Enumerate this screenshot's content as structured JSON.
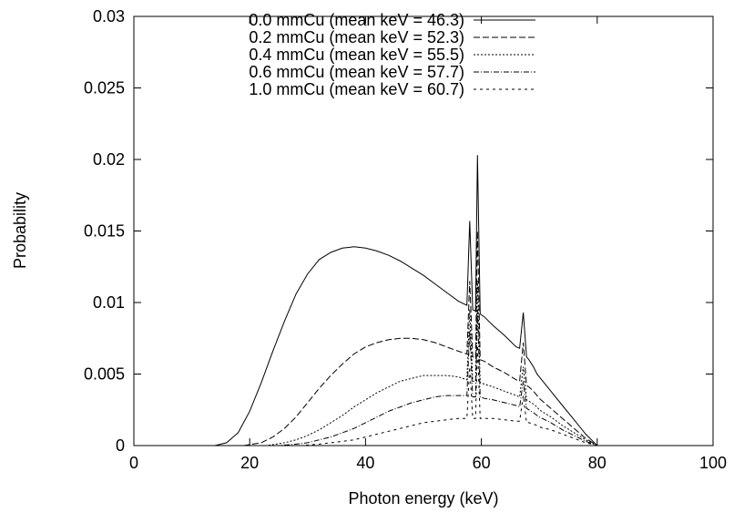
{
  "chart_data": {
    "type": "line",
    "title": "",
    "xlabel": "Photon energy (keV)",
    "ylabel": "Probability",
    "xlim": [
      0,
      100
    ],
    "ylim": [
      0,
      0.03
    ],
    "x_ticks": [
      "0",
      "20",
      "40",
      "60",
      "80",
      "100"
    ],
    "y_ticks": [
      "0",
      "0.005",
      "0.01",
      "0.015",
      "0.02",
      "0.025",
      "0.03"
    ],
    "grid": false,
    "legend_position": "top-right",
    "series": [
      {
        "name": "0.0 mmCu (mean keV = 46.3)",
        "dash": "",
        "x": [
          0,
          14,
          16,
          18,
          20,
          22,
          24,
          26,
          28,
          30,
          32,
          34,
          36,
          38,
          40,
          42,
          44,
          46,
          48,
          50,
          52,
          54,
          56,
          57.5,
          57.98,
          58.5,
          59.0,
          59.32,
          59.8,
          60.5,
          62,
          64,
          66,
          66.6,
          67.24,
          67.8,
          68.2,
          69.0,
          69.6,
          70,
          72,
          74,
          76,
          78,
          80,
          100
        ],
        "y": [
          0,
          0,
          0.0002,
          0.0009,
          0.0024,
          0.0044,
          0.0066,
          0.0087,
          0.0106,
          0.012,
          0.013,
          0.0135,
          0.0138,
          0.0139,
          0.0138,
          0.0136,
          0.0133,
          0.0129,
          0.0124,
          0.0119,
          0.0113,
          0.0107,
          0.0101,
          0.0098,
          0.0157,
          0.0095,
          0.0094,
          0.0203,
          0.0092,
          0.009,
          0.0084,
          0.0077,
          0.0069,
          0.0068,
          0.0093,
          0.0062,
          0.006,
          0.0055,
          0.005,
          0.0048,
          0.0038,
          0.0028,
          0.0018,
          0.0008,
          0,
          0
        ]
      },
      {
        "name": "0.2 mmCu (mean keV = 52.3)",
        "dash": "7,3",
        "x": [
          0,
          19,
          22,
          24,
          26,
          28,
          30,
          32,
          34,
          36,
          38,
          40,
          42,
          44,
          46,
          48,
          50,
          52,
          54,
          56,
          57.5,
          57.98,
          58.5,
          59.0,
          59.32,
          59.8,
          60.5,
          62,
          64,
          66,
          66.6,
          67.24,
          67.8,
          68.2,
          69.0,
          69.6,
          70,
          72,
          74,
          76,
          78,
          80,
          100
        ],
        "y": [
          0,
          0,
          0.0002,
          0.0006,
          0.0012,
          0.002,
          0.003,
          0.004,
          0.0049,
          0.0057,
          0.0064,
          0.0069,
          0.0072,
          0.0074,
          0.0075,
          0.0075,
          0.0074,
          0.0072,
          0.0069,
          0.0066,
          0.0064,
          0.0115,
          0.0062,
          0.0061,
          0.015,
          0.006,
          0.0059,
          0.0055,
          0.0051,
          0.0046,
          0.0045,
          0.0072,
          0.0042,
          0.0041,
          0.0038,
          0.0035,
          0.0033,
          0.0026,
          0.0019,
          0.0012,
          0.0005,
          0,
          0
        ]
      },
      {
        "name": "0.4 mmCu (mean keV = 55.5)",
        "dash": "2,2",
        "x": [
          0,
          23,
          26,
          28,
          30,
          32,
          34,
          36,
          38,
          40,
          42,
          44,
          46,
          48,
          50,
          52,
          54,
          56,
          57.5,
          57.98,
          58.5,
          59.0,
          59.32,
          59.8,
          60.5,
          62,
          64,
          66,
          66.6,
          67.24,
          67.8,
          68.2,
          69.0,
          69.6,
          70,
          72,
          74,
          76,
          78,
          80,
          100
        ],
        "y": [
          0,
          0,
          0.0002,
          0.0004,
          0.0007,
          0.0011,
          0.0016,
          0.0021,
          0.0027,
          0.0032,
          0.0037,
          0.0041,
          0.0045,
          0.0047,
          0.0049,
          0.0049,
          0.0049,
          0.0048,
          0.0046,
          0.0095,
          0.0045,
          0.0045,
          0.0115,
          0.0044,
          0.0043,
          0.0041,
          0.0038,
          0.0035,
          0.0034,
          0.0055,
          0.0032,
          0.0031,
          0.0029,
          0.0027,
          0.0025,
          0.002,
          0.0014,
          0.0009,
          0.0004,
          0,
          0
        ]
      },
      {
        "name": "0.6 mmCu (mean keV = 57.7)",
        "dash": "6,2,1,2",
        "x": [
          0,
          25,
          28,
          30,
          32,
          34,
          36,
          38,
          40,
          42,
          44,
          46,
          48,
          50,
          52,
          54,
          56,
          57.5,
          57.98,
          58.5,
          59.0,
          59.32,
          59.8,
          60.5,
          62,
          64,
          66,
          66.6,
          67.24,
          67.8,
          68.2,
          69.0,
          69.6,
          70,
          72,
          74,
          76,
          78,
          80,
          100
        ],
        "y": [
          0,
          0,
          0.0001,
          0.0002,
          0.0004,
          0.0006,
          0.0009,
          0.0012,
          0.0016,
          0.002,
          0.0024,
          0.0027,
          0.003,
          0.0032,
          0.0034,
          0.0035,
          0.0035,
          0.0035,
          0.008,
          0.0034,
          0.0034,
          0.0095,
          0.0034,
          0.0033,
          0.0032,
          0.003,
          0.0028,
          0.0027,
          0.0045,
          0.0026,
          0.0025,
          0.0023,
          0.0021,
          0.002,
          0.0016,
          0.0011,
          0.0007,
          0.0003,
          0,
          0
        ]
      },
      {
        "name": "1.0 mmCu (mean keV = 60.7)",
        "dash": "3,4",
        "x": [
          0,
          29,
          32,
          34,
          36,
          38,
          40,
          42,
          44,
          46,
          48,
          50,
          52,
          54,
          56,
          57.5,
          57.98,
          58.5,
          59.0,
          59.32,
          59.8,
          60.5,
          62,
          64,
          66,
          66.6,
          67.24,
          67.8,
          68.2,
          69.0,
          69.6,
          70,
          72,
          74,
          76,
          78,
          80,
          100
        ],
        "y": [
          0,
          0,
          0.0001,
          0.0002,
          0.0003,
          0.0004,
          0.0006,
          0.0008,
          0.001,
          0.0012,
          0.0014,
          0.0016,
          0.0017,
          0.0018,
          0.0019,
          0.0019,
          0.0055,
          0.0019,
          0.0019,
          0.007,
          0.0019,
          0.0019,
          0.0019,
          0.0018,
          0.0017,
          0.0017,
          0.0035,
          0.0016,
          0.0016,
          0.0015,
          0.0014,
          0.0013,
          0.0011,
          0.0008,
          0.0005,
          0.0002,
          0,
          0
        ]
      }
    ]
  }
}
